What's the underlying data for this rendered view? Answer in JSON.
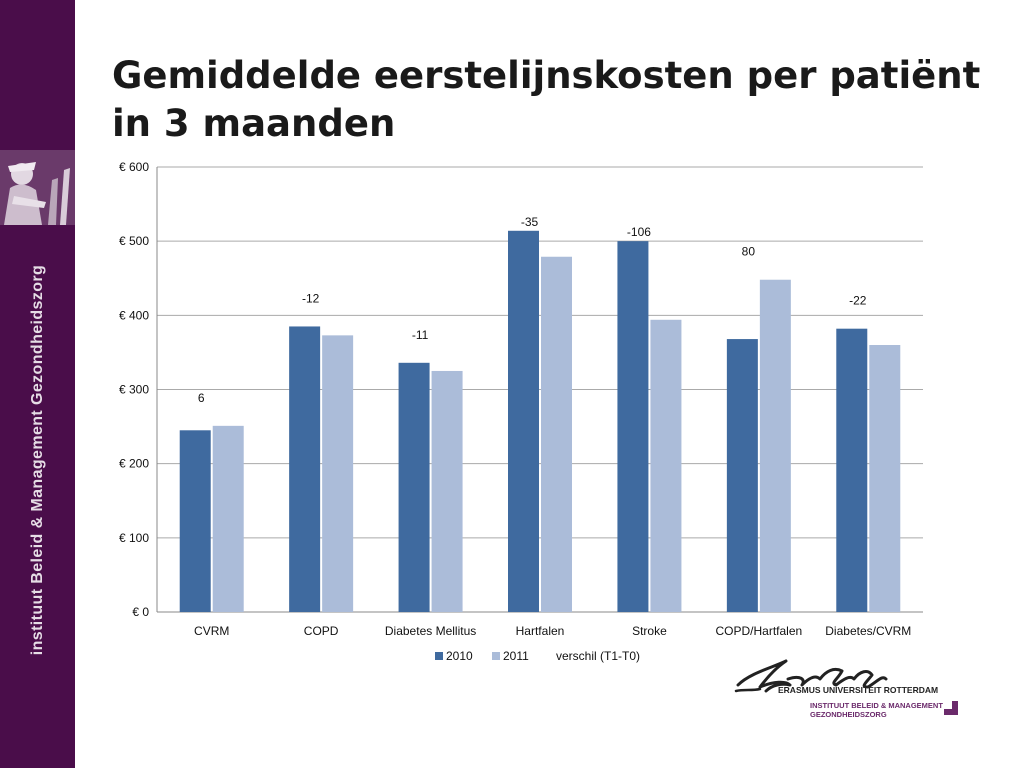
{
  "slide": {
    "title": "Gemiddelde eerstelijnskosten per patiënt in 3 maanden",
    "sidebar_label": "instituut Beleid & Management Gezondheidszorg"
  },
  "logo": {
    "wordmark": "Erasmus",
    "university": "ERASMUS UNIVERSITEIT ROTTERDAM",
    "institute_line1": "INSTITUUT BELEID & MANAGEMENT",
    "institute_line2": "GEZONDHEIDSZORG"
  },
  "colors": {
    "sidebar": "#4a0d4a",
    "series_2010": "#3f6a9f",
    "series_2011": "#abbcd9",
    "institute_text": "#6b2a6b"
  },
  "chart_data": {
    "type": "bar",
    "categories": [
      "CVRM",
      "COPD",
      "Diabetes Mellitus",
      "Hartfalen",
      "Stroke",
      "COPD/Hartfalen",
      "Diabetes/CVRM"
    ],
    "series": [
      {
        "name": "2010",
        "values": [
          245,
          385,
          336,
          514,
          500,
          368,
          382
        ]
      },
      {
        "name": "2011",
        "values": [
          251,
          373,
          325,
          479,
          394,
          448,
          360
        ]
      }
    ],
    "difference_series_name": "verschil (T1-T0)",
    "difference_labels": [
      "6",
      "-12",
      "-11",
      "-35",
      "-106",
      "80",
      "-22"
    ],
    "ylim": [
      0,
      600
    ],
    "yticks": [
      0,
      100,
      200,
      300,
      400,
      500,
      600
    ],
    "ytick_labels": [
      "€ 0",
      "€ 100",
      "€ 200",
      "€ 300",
      "€ 400",
      "€ 500",
      "€ 600"
    ],
    "grid": true,
    "legend_position": "bottom"
  }
}
